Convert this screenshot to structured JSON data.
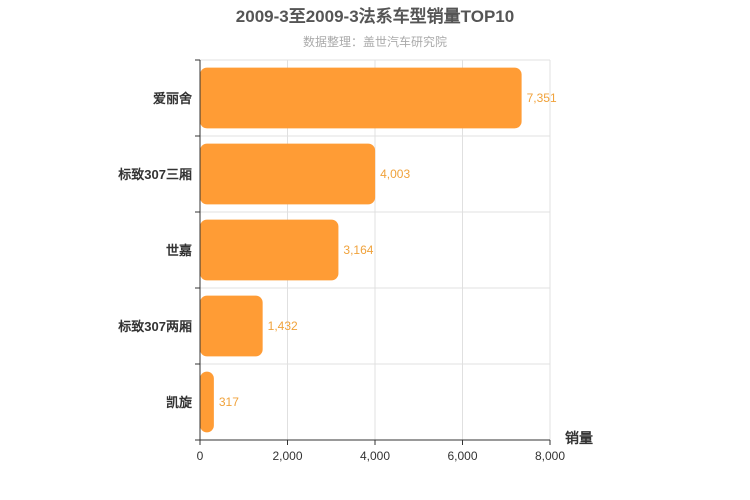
{
  "chart_data": {
    "type": "bar",
    "orientation": "horizontal",
    "title": "2009-3至2009-3法系车型销量TOP10",
    "subtitle": "数据整理：盖世汽车研究院",
    "categories": [
      "爱丽舍",
      "标致307三厢",
      "世嘉",
      "标致307两厢",
      "凯旋"
    ],
    "values": [
      7351,
      4003,
      3164,
      1432,
      317
    ],
    "value_labels": [
      "7,351",
      "4,003",
      "3,164",
      "1,432",
      "317"
    ],
    "xlabel": "销量",
    "ylabel": "",
    "xlim": [
      0,
      8000
    ],
    "x_ticks": [
      0,
      2000,
      4000,
      6000,
      8000
    ],
    "x_tick_labels": [
      "0",
      "2,000",
      "4,000",
      "6,000",
      "8,000"
    ],
    "grid": true,
    "bar_color": "#ff9c35",
    "label_color": "#f0a23b"
  }
}
